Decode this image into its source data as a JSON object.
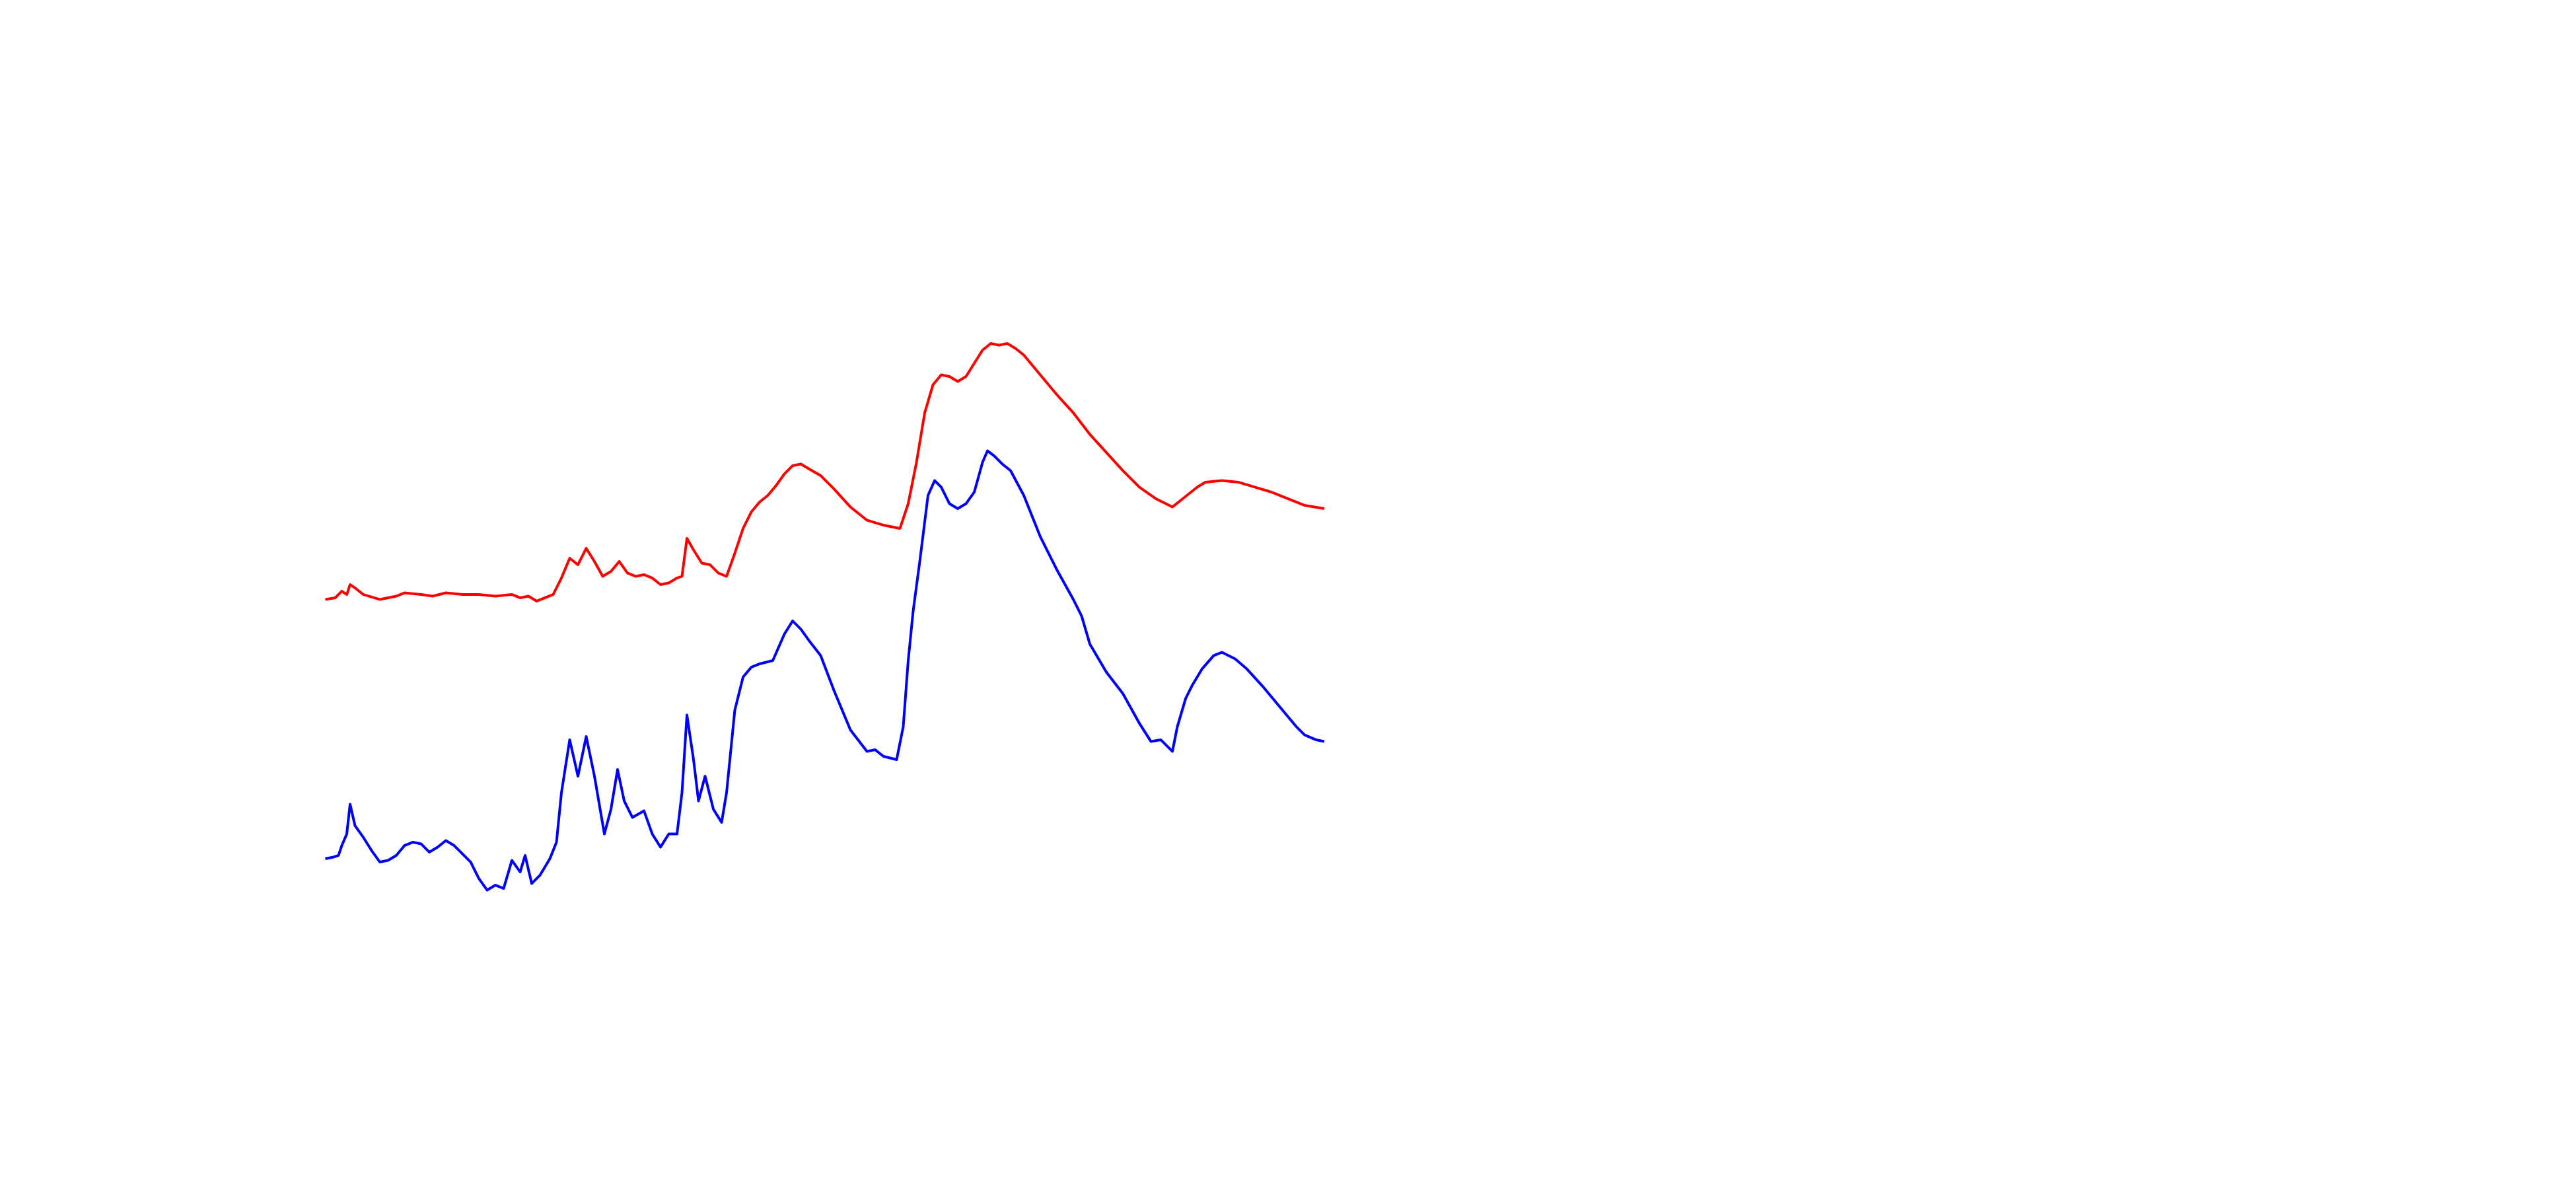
{
  "chart_data": {
    "type": "line",
    "xlim": [
      0,
      1560
    ],
    "ylim": [
      0,
      720
    ],
    "series": [
      {
        "color": "#ff0000",
        "x": [
          197,
          203,
          207,
          210,
          212,
          215,
          220,
          230,
          240,
          245,
          255,
          262,
          270,
          280,
          290,
          300,
          310,
          315,
          320,
          325,
          330,
          335,
          340,
          345,
          350,
          355,
          360,
          365,
          370,
          375,
          380,
          385,
          390,
          395,
          400,
          405,
          410,
          413,
          416,
          420,
          425,
          430,
          435,
          440,
          445,
          450,
          455,
          460,
          465,
          470,
          475,
          480,
          485,
          490,
          497,
          505,
          515,
          525,
          535,
          545,
          550,
          555,
          560,
          565,
          570,
          575,
          580,
          585,
          590,
          595,
          600,
          605,
          610,
          615,
          620,
          630,
          640,
          650,
          660,
          670,
          680,
          690,
          700,
          710,
          715,
          720,
          725,
          730,
          740,
          750,
          760,
          770,
          780,
          790,
          802
        ],
        "values": [
          357,
          358,
          362,
          360,
          366,
          364,
          360,
          357,
          359,
          361,
          360,
          359,
          361,
          360,
          360,
          359,
          360,
          358,
          359,
          356,
          358,
          360,
          370,
          382,
          378,
          388,
          380,
          371,
          374,
          380,
          373,
          371,
          372,
          370,
          366,
          367,
          370,
          371,
          394,
          387,
          379,
          378,
          373,
          371,
          385,
          400,
          410,
          416,
          420,
          426,
          433,
          438,
          439,
          436,
          432,
          424,
          413,
          405,
          402,
          400,
          415,
          440,
          470,
          487,
          493,
          492,
          489,
          492,
          500,
          508,
          512,
          511,
          512,
          509,
          505,
          493,
          481,
          470,
          457,
          446,
          435,
          425,
          418,
          413,
          417,
          421,
          425,
          428,
          429,
          428,
          425,
          422,
          418,
          414,
          412
        ]
      },
      {
        "color": "#0000ff",
        "x": [
          197,
          202,
          205,
          207,
          210,
          212,
          215,
          220,
          225,
          230,
          235,
          240,
          245,
          250,
          255,
          260,
          265,
          270,
          275,
          280,
          285,
          290,
          295,
          300,
          305,
          310,
          315,
          318,
          322,
          327,
          333,
          337,
          340,
          345,
          350,
          355,
          360,
          366,
          370,
          374,
          378,
          383,
          390,
          395,
          400,
          405,
          410,
          413,
          416,
          420,
          423,
          427,
          432,
          437,
          440,
          445,
          450,
          455,
          460,
          468,
          475,
          480,
          485,
          490,
          497,
          505,
          515,
          525,
          530,
          535,
          543,
          547,
          550,
          553,
          557,
          562,
          566,
          570,
          575,
          580,
          585,
          590,
          595,
          598,
          602,
          607,
          612,
          620,
          630,
          640,
          650,
          655,
          660,
          670,
          680,
          690,
          697,
          703,
          710,
          713,
          718,
          722,
          728,
          735,
          740,
          748,
          755,
          765,
          775,
          785,
          790,
          797,
          802
        ],
        "values": [
          200,
          201,
          202,
          208,
          215,
          233,
          220,
          213,
          205,
          198,
          199,
          202,
          208,
          210,
          209,
          204,
          207,
          211,
          208,
          203,
          198,
          188,
          181,
          184,
          182,
          199,
          192,
          202,
          185,
          190,
          200,
          210,
          240,
          272,
          250,
          274,
          250,
          215,
          230,
          254,
          235,
          225,
          229,
          215,
          207,
          215,
          215,
          240,
          287,
          260,
          235,
          250,
          230,
          222,
          240,
          290,
          310,
          316,
          318,
          320,
          336,
          344,
          339,
          332,
          323,
          302,
          278,
          265,
          266,
          262,
          260,
          280,
          320,
          350,
          380,
          420,
          429,
          425,
          415,
          412,
          415,
          422,
          440,
          447,
          444,
          439,
          435,
          420,
          395,
          375,
          357,
          347,
          330,
          313,
          300,
          282,
          271,
          272,
          265,
          280,
          297,
          305,
          315,
          323,
          325,
          321,
          315,
          304,
          292,
          280,
          275,
          272,
          271
        ]
      }
    ]
  }
}
